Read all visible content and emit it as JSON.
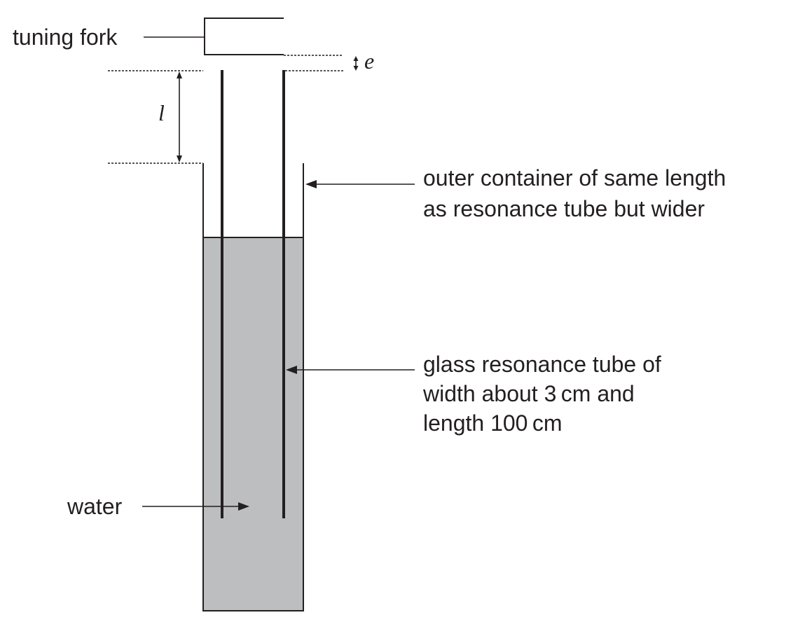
{
  "labels": {
    "tuning_fork": "tuning fork",
    "water": "water",
    "outer_container_line1": "outer container of same length",
    "outer_container_line2": "as resonance tube but wider",
    "glass_tube_line1": "glass resonance tube of",
    "glass_tube_line2": "width about 3 cm and",
    "glass_tube_line3": "length 100 cm"
  },
  "symbols": {
    "end_correction": "e",
    "length": "l"
  },
  "colors": {
    "line": "#231f20",
    "water_fill": "#bcbec0"
  }
}
